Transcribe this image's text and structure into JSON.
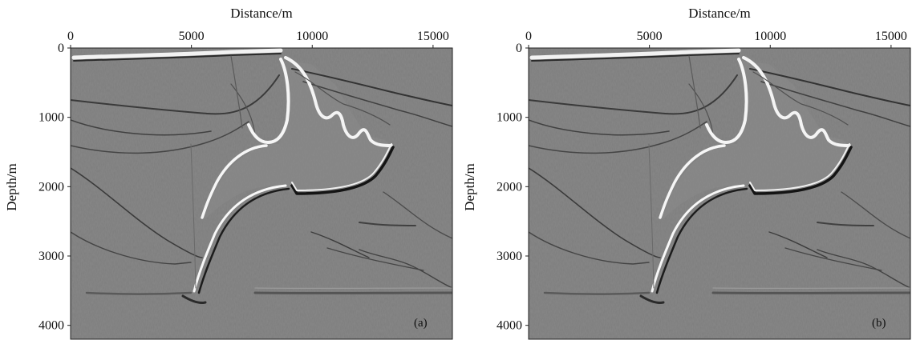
{
  "chart_data": [
    {
      "type": "heatmap",
      "panel_label": "(a)",
      "xlabel": "Distance/m",
      "ylabel": "Depth/m",
      "xlim": [
        0,
        15800
      ],
      "ylim": [
        0,
        4200
      ],
      "x_ticks": [
        0,
        5000,
        10000,
        15000
      ],
      "y_ticks": [
        0,
        1000,
        2000,
        3000,
        4000
      ],
      "x_axis_position": "top",
      "colormap": "grayscale seismic image",
      "background_color": "#7d7d7d"
    },
    {
      "type": "heatmap",
      "panel_label": "(b)",
      "xlabel": "Distance/m",
      "ylabel": "Depth/m",
      "xlim": [
        0,
        15800
      ],
      "ylim": [
        0,
        4200
      ],
      "x_ticks": [
        0,
        5000,
        10000,
        15000
      ],
      "y_ticks": [
        0,
        1000,
        2000,
        3000,
        4000
      ],
      "x_axis_position": "top",
      "colormap": "grayscale seismic image",
      "background_color": "#7d7d7d"
    }
  ]
}
